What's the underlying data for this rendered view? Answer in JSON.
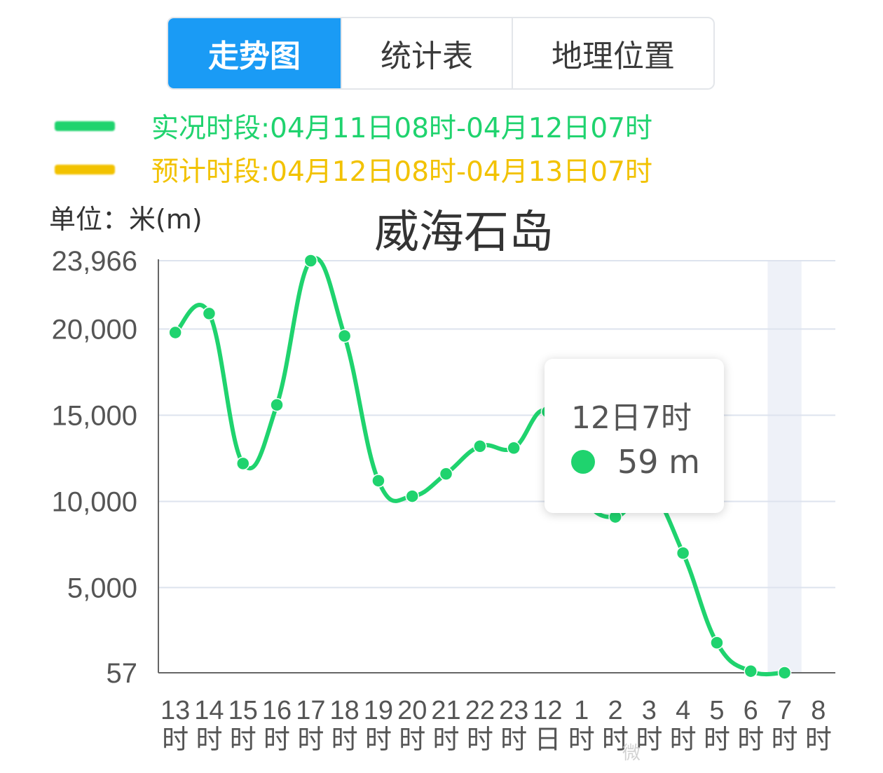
{
  "tabs": [
    {
      "label": "走势图",
      "active": true
    },
    {
      "label": "统计表",
      "active": false
    },
    {
      "label": "地理位置",
      "active": false
    }
  ],
  "legend": {
    "observed": {
      "label": "实况时段:04月11日08时-04月12日07时",
      "color": "#1fd36e"
    },
    "forecast": {
      "label": "预计时段:04月12日08时-04月13日07时",
      "color": "#f2c200"
    }
  },
  "unit_label": "单位：米(m)",
  "chart_data": {
    "type": "line",
    "title": "威海石岛",
    "ylabel": "单位：米(m)",
    "ylim": [
      57,
      23966
    ],
    "yticks": [
      "57",
      "5,000",
      "10,000",
      "15,000",
      "20,000",
      "23,966"
    ],
    "categories": [
      "13时",
      "14时",
      "15时",
      "16时",
      "17时",
      "18时",
      "19时",
      "20时",
      "21时",
      "22时",
      "23时",
      "12日",
      "1时",
      "2时",
      "3时",
      "4时",
      "5时",
      "6时",
      "7时",
      "8时"
    ],
    "series": [
      {
        "color": "#1fd36e",
        "values": [
          19800,
          20900,
          12200,
          15600,
          23966,
          19600,
          11200,
          10300,
          11600,
          13200,
          13100,
          15200,
          10400,
          9100,
          10600,
          7000,
          1800,
          150,
          59,
          null
        ]
      }
    ],
    "highlight_category": "7时",
    "grid": true
  },
  "tooltip": {
    "title": "12日7时",
    "value": "59 m"
  },
  "watermark": "微"
}
